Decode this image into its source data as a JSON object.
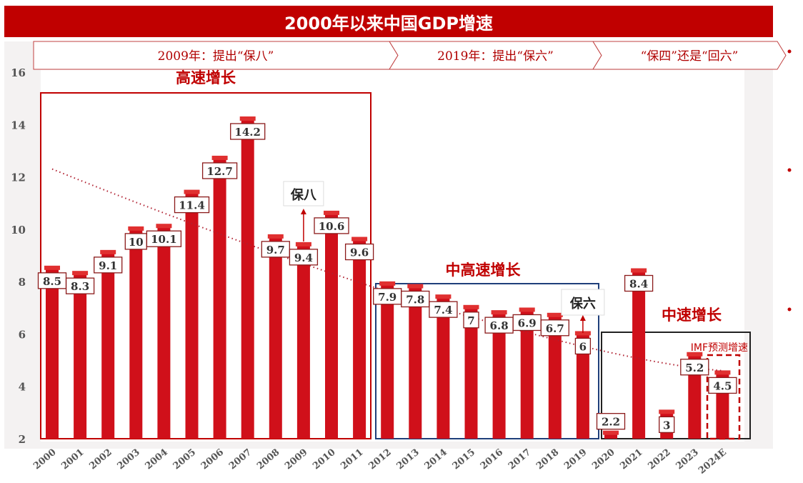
{
  "title": "2000年以来中国GDP增速",
  "banner": [
    "2009年：提出“保八”",
    "2019年：提出“保六”",
    "“保四”还是“回六”"
  ],
  "colors": {
    "bar": "#d0101a",
    "accent": "#c00000",
    "high_box": "#c00000",
    "mid_high_box": "#1f3f7a",
    "mid_box": "#222222"
  },
  "chart_data": {
    "type": "bar",
    "title": "2000年以来中国GDP增速",
    "categories": [
      "2000",
      "2001",
      "2002",
      "2003",
      "2004",
      "2005",
      "2006",
      "2007",
      "2008",
      "2009",
      "2010",
      "2011",
      "2012",
      "2013",
      "2014",
      "2015",
      "2016",
      "2017",
      "2018",
      "2019",
      "2020",
      "2021",
      "2022",
      "2023",
      "2024E"
    ],
    "values": [
      8.5,
      8.3,
      9.1,
      10,
      10.1,
      11.4,
      12.7,
      14.2,
      9.7,
      9.4,
      10.6,
      9.6,
      7.9,
      7.8,
      7.4,
      7,
      6.8,
      6.9,
      6.7,
      6,
      2.2,
      8.4,
      3,
      5.2,
      4.5
    ],
    "data_labels": [
      "8.5",
      "8.3",
      "9.1",
      "10",
      "10.1",
      "11.4",
      "12.7",
      "14.2",
      "9.7",
      "9.4",
      "10.6",
      "9.6",
      "7.9",
      "7.8",
      "7.4",
      "7",
      "6.8",
      "6.9",
      "6.7",
      "6",
      "2.2",
      "8.4",
      "3",
      "5.2",
      "4.5"
    ],
    "ylim": [
      2,
      16
    ],
    "yticks": [
      "2",
      "4",
      "6",
      "8",
      "10",
      "12",
      "14",
      "16"
    ],
    "grid": false,
    "trendline": {
      "style": "dotted",
      "from": {
        "x": "2000",
        "y": 12.3
      },
      "to": {
        "x": "2024E",
        "y": 4.6
      }
    },
    "phases": [
      {
        "label": "高速增长",
        "from": "2000",
        "to": "2011"
      },
      {
        "label": "中高速增长",
        "from": "2012",
        "to": "2019"
      },
      {
        "label": "中速增长",
        "from": "2020",
        "to": "2024E"
      }
    ],
    "annotations": [
      {
        "label": "保八",
        "x": "2009"
      },
      {
        "label": "保六",
        "x": "2019"
      },
      {
        "label": "IMF预测增速",
        "x": "2024E"
      }
    ]
  }
}
